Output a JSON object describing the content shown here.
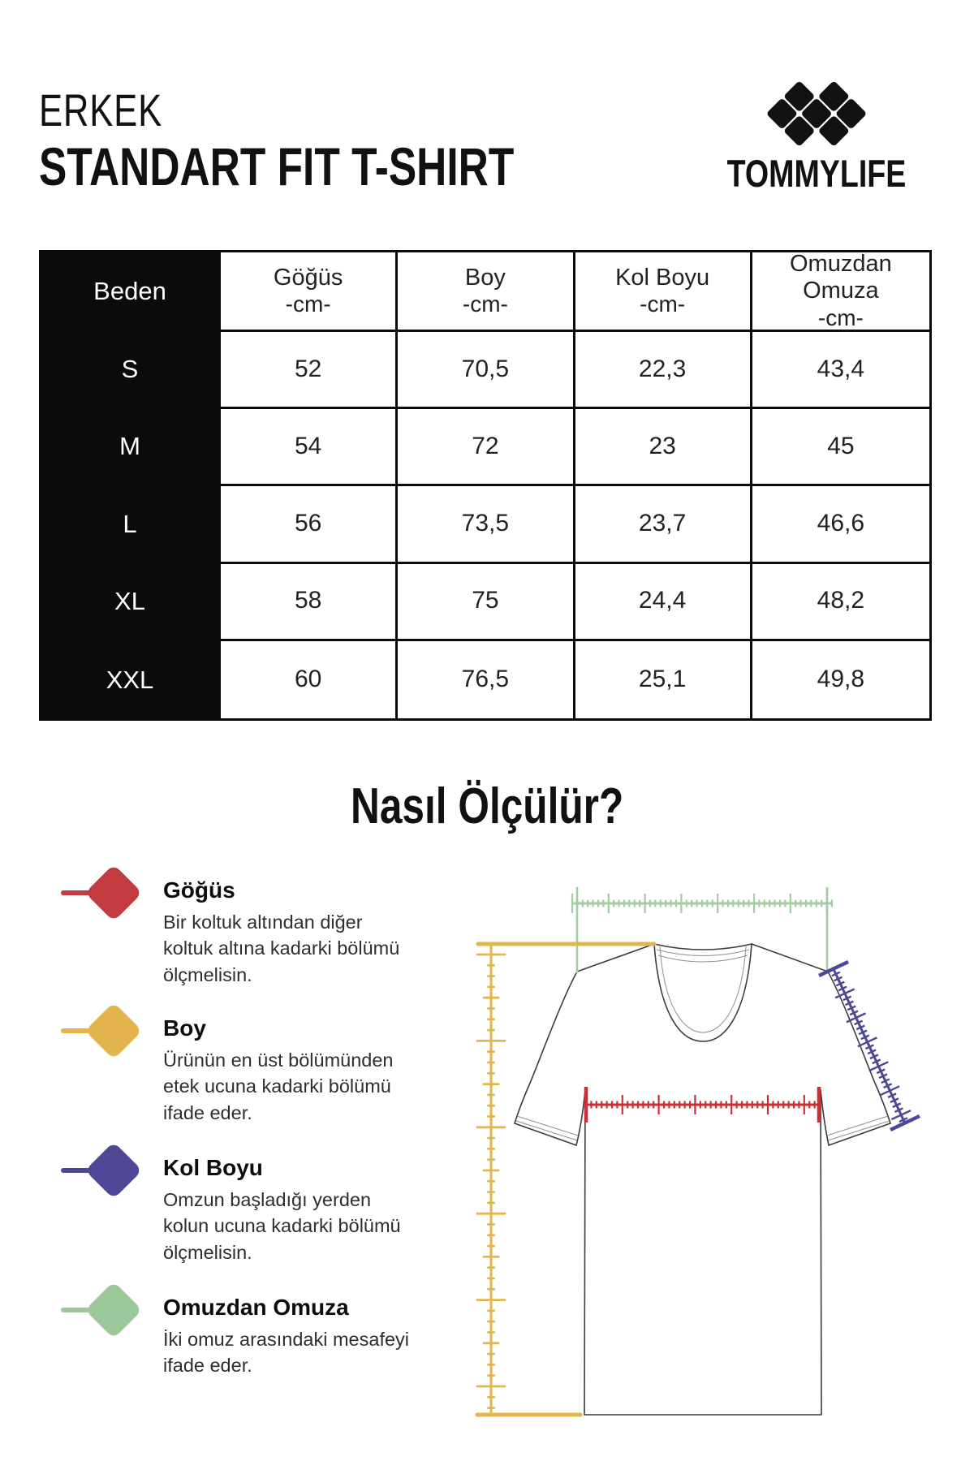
{
  "page": {
    "category": "ERKEK",
    "title": "STANDART FIT T-SHIRT",
    "brand": "TOMMYLIFE",
    "section_title": "Nasıl Ölçülür?"
  },
  "size_table": {
    "headers": [
      {
        "label": "Beden",
        "unit": ""
      },
      {
        "label": "Göğüs",
        "unit": "-cm-"
      },
      {
        "label": "Boy",
        "unit": "-cm-"
      },
      {
        "label": "Kol Boyu",
        "unit": "-cm-"
      },
      {
        "label": "Omuzdan Omuza",
        "unit": "-cm-"
      }
    ],
    "rows": [
      {
        "size": "S",
        "values": [
          "52",
          "70,5",
          "22,3",
          "43,4"
        ]
      },
      {
        "size": "M",
        "values": [
          "54",
          "72",
          "23",
          "45"
        ]
      },
      {
        "size": "L",
        "values": [
          "56",
          "73,5",
          "23,7",
          "46,6"
        ]
      },
      {
        "size": "XL",
        "values": [
          "58",
          "75",
          "24,4",
          "48,2"
        ]
      },
      {
        "size": "XXL",
        "values": [
          "60",
          "76,5",
          "25,1",
          "49,8"
        ]
      }
    ]
  },
  "measure_guide": {
    "items": [
      {
        "label": "Göğüs",
        "description": "Bir koltuk altından diğer koltuk altına kadarki bölümü ölçmelisin.",
        "color": "#c13b41"
      },
      {
        "label": "Boy",
        "description": "Ürünün en üst bölümünden etek ucuna kadarki bölümü ifade eder.",
        "color": "#e5b54d"
      },
      {
        "label": "Kol Boyu",
        "description": "Omzun başladığı yerden kolun ucuna kadarki bölümü ölçmelisin.",
        "color": "#4e4796"
      },
      {
        "label": "Omuzdan Omuza",
        "description": "İki omuz arasındaki mesafeyi ifade eder.",
        "color": "#9cc89b"
      }
    ]
  },
  "colors": {
    "chest": "#cb2e35",
    "length": "#e5b54d",
    "sleeve": "#4e4796",
    "shoulder": "#a3cda1",
    "table_header_bg": "#0b0b0b",
    "ink": "#0a0a0a"
  }
}
